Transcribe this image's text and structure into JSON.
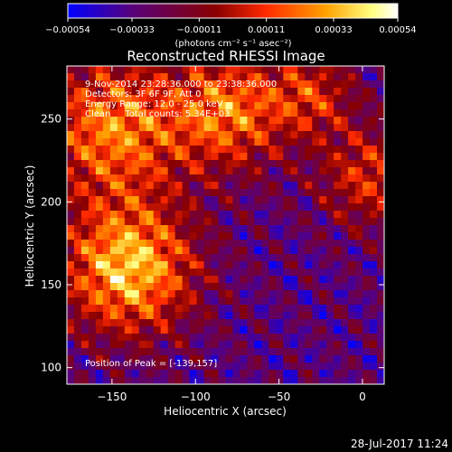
{
  "chart_data": {
    "type": "heatmap",
    "title": "Reconstructed RHESSI Image",
    "xlabel": "Heliocentric X (arcsec)",
    "ylabel": "Heliocentric Y (arcsec)",
    "xlim": [
      -177,
      13
    ],
    "ylim": [
      90,
      282
    ],
    "x_ticks": [
      -150,
      -100,
      -50,
      0
    ],
    "x_tick_labels": [
      "−150",
      "−100",
      "−50",
      "0"
    ],
    "y_ticks": [
      100,
      150,
      200,
      250
    ],
    "y_tick_labels": [
      "100",
      "150",
      "200",
      "250"
    ],
    "colorbar": {
      "range": [
        -0.00054,
        0.00054
      ],
      "ticks": [
        -0.00054,
        -0.00033,
        -0.00011,
        0.00011,
        0.00033,
        0.00054
      ],
      "tick_labels": [
        "−0.00054",
        "−0.00033",
        "−0.00011",
        "0.00011",
        "0.00033",
        "0.00054"
      ],
      "units": "(photons cm⁻² s⁻¹ asec⁻²)",
      "colors": [
        "#0000ff",
        "#5a0078",
        "#8a0000",
        "#ff2a00",
        "#ffa000",
        "#ffff80",
        "#ffffff"
      ]
    },
    "peak": [
      -139,
      157
    ],
    "grid": false
  },
  "annotations": {
    "time": "9-Nov-2014 23:28:36.000 to 23:38:36.000",
    "detectors": "Detectors: 3F 6F 9F, Att 0",
    "energy": "Energy Range: 12.0 - 25.0 keV",
    "clean": "Clean     Total counts: 5.34E+03",
    "peak": "Position of Peak = [-139,157]"
  },
  "footer": "28-Jul-2017 11:24"
}
